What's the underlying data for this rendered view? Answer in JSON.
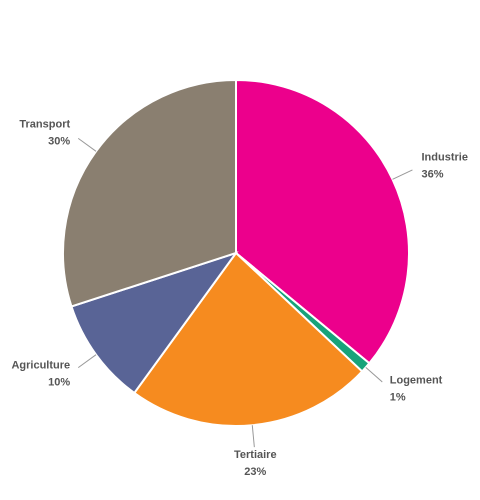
{
  "chart_data": {
    "type": "pie",
    "categories": [
      "Industrie",
      "Logement",
      "Tertiaire",
      "Agriculture",
      "Transport"
    ],
    "values": [
      36,
      1,
      23,
      10,
      30
    ],
    "value_labels": [
      "36%",
      "1%",
      "23%",
      "10%",
      "30%"
    ],
    "colors": [
      "#ec008c",
      "#17a37a",
      "#f68b1f",
      "#596496",
      "#8a7f70"
    ]
  }
}
